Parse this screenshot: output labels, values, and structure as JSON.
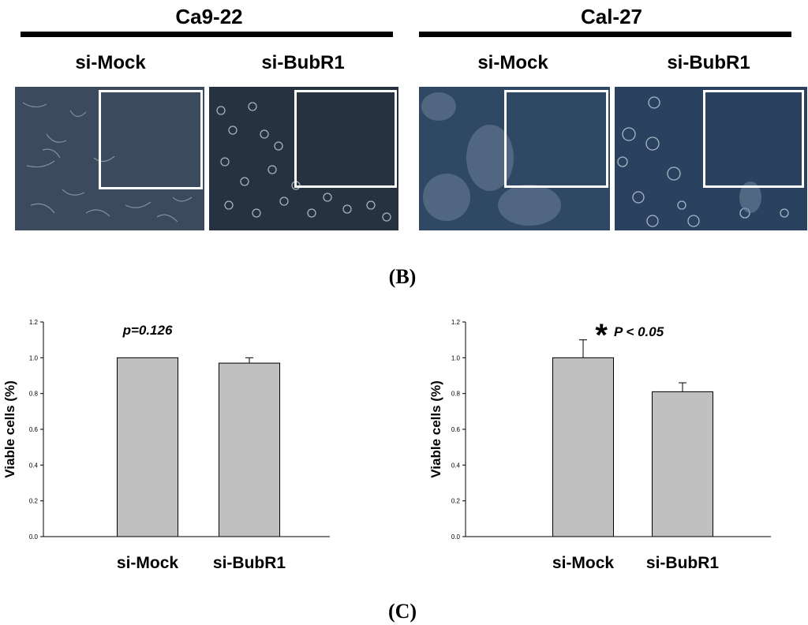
{
  "headers": {
    "left_line": "Ca9-22",
    "right_line": "Cal-27"
  },
  "micrographs": [
    {
      "label": "si-Mock",
      "color": "#3b4a5c"
    },
    {
      "label": "si-BubR1",
      "color": "#26323f"
    },
    {
      "label": "si-Mock",
      "color": "#2f4863"
    },
    {
      "label": "si-BubR1",
      "color": "#2a4260"
    }
  ],
  "panel_b_label": "(B)",
  "panel_c_label": "(C)",
  "chart_data": [
    {
      "type": "bar",
      "categories": [
        "si-Mock",
        "si-BubR1"
      ],
      "values": [
        1.0,
        0.97
      ],
      "errors": [
        0.0,
        0.03
      ],
      "ylabel": "Viable cells (%)",
      "ylim": [
        0,
        1.2
      ],
      "yticks": [
        "0.0",
        "0.2",
        "0.4",
        "0.6",
        "0.8",
        "1.0",
        "1.2"
      ],
      "annotation": "p=0.126",
      "bar_color": "#c0c0c0",
      "grid": false
    },
    {
      "type": "bar",
      "categories": [
        "si-Mock",
        "si-BubR1"
      ],
      "values": [
        1.0,
        0.81
      ],
      "errors": [
        0.1,
        0.05
      ],
      "ylabel": "Viable cells (%)",
      "ylim": [
        0,
        1.2
      ],
      "yticks": [
        "0.0",
        "0.2",
        "0.4",
        "0.6",
        "0.8",
        "1.0",
        "1.2"
      ],
      "annotation": "P < 0.05",
      "annotation_mark": "*",
      "bar_color": "#c0c0c0",
      "grid": false
    }
  ]
}
